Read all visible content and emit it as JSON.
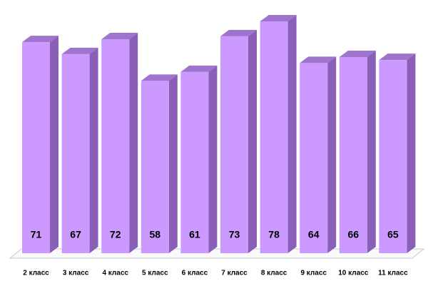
{
  "chart_data": {
    "type": "bar3d",
    "categories": [
      "2 класс",
      "3 класс",
      "4 класс",
      "5 класс",
      "6 класс",
      "7 класс",
      "8 класс",
      "9 класс",
      "10 класс",
      "11 класс"
    ],
    "values": [
      71,
      67,
      72,
      58,
      61,
      73,
      78,
      64,
      66,
      65
    ],
    "color": "#cc99ff"
  }
}
